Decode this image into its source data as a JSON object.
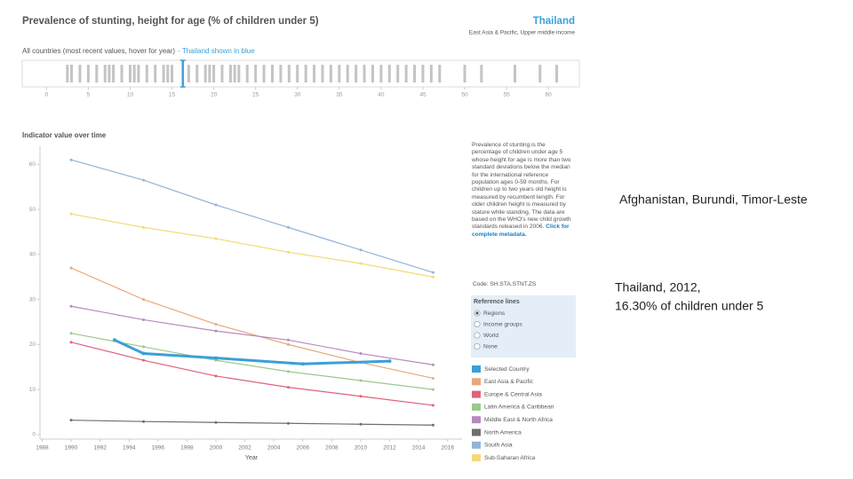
{
  "header": {
    "title": "Prevalence of stunting, height for age (% of children under 5)",
    "country": "Thailand",
    "country_subtitle": "East Asia & Pacific, Upper middle income"
  },
  "chart_data": [
    {
      "type": "strip",
      "title": "All countries (most recent values, hover for year)",
      "highlight_note": "- Thailand shown in blue",
      "color": "#c4c4c4",
      "highlight": {
        "name": "Thailand",
        "value": 16.3,
        "color": "#3aa0d8"
      },
      "values": [
        2.5,
        3,
        4,
        5,
        6,
        7,
        7.5,
        8,
        9,
        10,
        10.5,
        11,
        12,
        13,
        14,
        14.5,
        15,
        17,
        18,
        19,
        19.5,
        20,
        21,
        22,
        22.5,
        23,
        24,
        25,
        26,
        27,
        28,
        29,
        30,
        31,
        32,
        33,
        34,
        35,
        36,
        37,
        38,
        39,
        40,
        41,
        42,
        43,
        44,
        45,
        46,
        47,
        50,
        52,
        56,
        59,
        61
      ],
      "xlim": [
        -2.9,
        63.7
      ],
      "xticks": [
        0,
        5,
        10,
        15,
        20,
        25,
        30,
        35,
        40,
        45,
        50,
        55,
        60
      ]
    },
    {
      "type": "line",
      "title": "Indicator value over time",
      "x_label": "Year",
      "xlim": [
        1987.85,
        2017
      ],
      "ylim": [
        -1,
        64
      ],
      "xticks": [
        1988,
        1990,
        1992,
        1994,
        1996,
        1998,
        2000,
        2002,
        2004,
        2006,
        2008,
        2010,
        2012,
        2014,
        2016
      ],
      "yticks": [
        0,
        10,
        20,
        30,
        40,
        50,
        60
      ],
      "series": [
        {
          "name": "Selected Country",
          "color": "#3aa0d8",
          "x": [
            1993,
            1995,
            2000,
            2006,
            2012
          ],
          "values": [
            21,
            18,
            17,
            15.7,
            16.3
          ]
        },
        {
          "name": "East Asia & Pacific",
          "color": "#e8a87c",
          "x": [
            1990,
            1995,
            2000,
            2005,
            2010,
            2015
          ],
          "values": [
            37,
            30,
            24.5,
            20,
            16,
            12.5
          ]
        },
        {
          "name": "Europe & Central Asia",
          "color": "#e0607a",
          "x": [
            1990,
            1995,
            2000,
            2005,
            2010,
            2015
          ],
          "values": [
            20.5,
            16.5,
            13,
            10.5,
            8.5,
            6.5
          ]
        },
        {
          "name": "Latin America & Caribbean",
          "color": "#9bc98a",
          "x": [
            1990,
            1995,
            2000,
            2005,
            2010,
            2015
          ],
          "values": [
            22.5,
            19.5,
            16.5,
            14,
            12,
            10
          ]
        },
        {
          "name": "Middle East & North Africa",
          "color": "#b78ac0",
          "x": [
            1990,
            1995,
            2000,
            2005,
            2010,
            2015
          ],
          "values": [
            28.5,
            25.5,
            23,
            21,
            18,
            15.5
          ]
        },
        {
          "name": "North America",
          "color": "#6e6e6e",
          "x": [
            1990,
            1995,
            2000,
            2005,
            2010,
            2015
          ],
          "values": [
            3.2,
            2.9,
            2.7,
            2.5,
            2.3,
            2.1
          ]
        },
        {
          "name": "South Asia",
          "color": "#92b5d8",
          "x": [
            1990,
            1995,
            2000,
            2005,
            2010,
            2015
          ],
          "values": [
            61,
            56.5,
            51,
            46,
            41,
            36
          ]
        },
        {
          "name": "Sub-Saharan Africa",
          "color": "#f3d97a",
          "x": [
            1990,
            1995,
            2000,
            2005,
            2010,
            2015
          ],
          "values": [
            49,
            46,
            43.5,
            40.5,
            38,
            35
          ]
        }
      ]
    }
  ],
  "panel": {
    "description": "Prevalence of stunting is the percentage of children under age 5 whose height for age is more than two standard deviations below the median for the international reference population ages 0-59 months. For children up to two years old height is measured by recumbent length. For older children height is measured by stature while standing. The data are based on the WHO's new child growth standards released in 2006.",
    "metadata_link": "Click for complete metadata.",
    "code": "Code: SH.STA.STNT.ZS",
    "reference_title": "Reference lines",
    "reference_options": [
      "Regions",
      "Income groups",
      "World",
      "None"
    ],
    "selected_option": 0
  },
  "slide_text": [
    "Afghanistan, Burundi, Timor-Leste",
    "Thailand, 2012,",
    "16.30% of children under 5"
  ]
}
